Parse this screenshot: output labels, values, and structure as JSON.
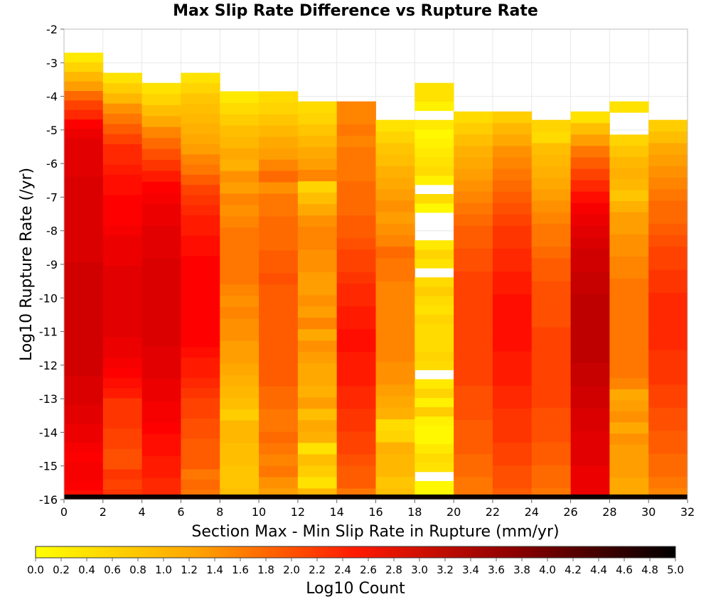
{
  "chart_data": {
    "type": "heatmap",
    "title": "Max Slip Rate Difference vs Rupture Rate",
    "xlabel": "Section Max - Min Slip Rate in Rupture (mm/yr)",
    "ylabel": "Log10 Rupture Rate (/yr)",
    "colorbar_label": "Log10 Count",
    "xlim": [
      0,
      32
    ],
    "ylim": [
      -16,
      -2
    ],
    "x_ticks": [
      "0",
      "2",
      "4",
      "6",
      "8",
      "10",
      "12",
      "14",
      "16",
      "18",
      "20",
      "22",
      "24",
      "26",
      "28",
      "30",
      "32"
    ],
    "y_ticks": [
      "-2",
      "-3",
      "-4",
      "-5",
      "-6",
      "-7",
      "-8",
      "-9",
      "-10",
      "-11",
      "-12",
      "-13",
      "-14",
      "-15",
      "-16"
    ],
    "colorbar_ticks": [
      "0.0",
      "0.2",
      "0.4",
      "0.6",
      "0.8",
      "1.0",
      "1.2",
      "1.4",
      "1.6",
      "1.8",
      "2.0",
      "2.2",
      "2.4",
      "2.6",
      "2.8",
      "3.0",
      "3.2",
      "3.4",
      "3.6",
      "3.8",
      "4.0",
      "4.2",
      "4.4",
      "4.6",
      "4.8",
      "5.0"
    ],
    "colorbar_range": [
      0,
      5
    ],
    "colormap": [
      "#ffff00",
      "#ffa500",
      "#ff0000",
      "#8b0000",
      "#000000"
    ],
    "grid": true,
    "y_bin_width": 0.285,
    "note_values": "log10 count per cell; columns are 2 mm/yr bins, bins listed from log10 rate -16 upward",
    "columns": [
      {
        "x_start": 0,
        "y_top": -2.7,
        "values": [
          2.4,
          2.5,
          2.6,
          2.6,
          2.5,
          2.6,
          2.7,
          2.7,
          2.8,
          2.8,
          2.9,
          2.9,
          2.9,
          3.0,
          3.0,
          3.0,
          3.0,
          3.0,
          3.0,
          3.0,
          3.0,
          3.0,
          3.0,
          3.0,
          3.0,
          2.9,
          2.9,
          2.9,
          2.9,
          2.9,
          2.9,
          2.9,
          2.9,
          2.9,
          2.8,
          2.8,
          2.8,
          2.8,
          2.7,
          2.5,
          2.2,
          2.0,
          1.7,
          1.3,
          1.0,
          0.6,
          0.3
        ]
      },
      {
        "x_start": 2,
        "y_top": -3.3,
        "values": [
          2.1,
          2.0,
          2.1,
          1.9,
          1.9,
          2.0,
          2.0,
          2.1,
          2.1,
          2.1,
          2.3,
          2.4,
          2.5,
          2.6,
          2.7,
          2.7,
          2.8,
          2.8,
          2.8,
          2.8,
          2.8,
          2.8,
          2.8,
          2.7,
          2.7,
          2.7,
          2.6,
          2.5,
          2.5,
          2.5,
          2.4,
          2.4,
          2.3,
          2.2,
          2.2,
          2.0,
          1.8,
          1.6,
          1.4,
          1.0,
          0.7,
          0.4
        ]
      },
      {
        "x_start": 4,
        "y_top": -3.6,
        "values": [
          2.2,
          2.2,
          2.3,
          2.3,
          2.4,
          2.4,
          2.5,
          2.6,
          2.6,
          2.7,
          2.7,
          2.8,
          2.8,
          2.8,
          2.9,
          2.9,
          2.9,
          2.9,
          2.9,
          2.9,
          2.9,
          2.9,
          2.8,
          2.8,
          2.8,
          2.7,
          2.7,
          2.6,
          2.5,
          2.3,
          2.1,
          1.9,
          1.7,
          1.5,
          1.2,
          0.9,
          0.6,
          0.4
        ]
      },
      {
        "x_start": 6,
        "y_top": -3.3,
        "values": [
          1.6,
          1.7,
          1.6,
          1.8,
          1.8,
          1.8,
          1.9,
          1.9,
          2.0,
          2.0,
          2.1,
          2.2,
          2.3,
          2.3,
          2.4,
          2.5,
          2.5,
          2.5,
          2.5,
          2.5,
          2.5,
          2.5,
          2.5,
          2.5,
          2.4,
          2.4,
          2.3,
          2.3,
          2.2,
          2.1,
          2.0,
          1.8,
          1.6,
          1.5,
          1.3,
          1.2,
          1.1,
          1.0,
          0.9,
          0.8,
          0.6,
          0.4
        ]
      },
      {
        "x_start": 8,
        "y_top": -3.85,
        "values": [
          0.9,
          0.8,
          0.8,
          0.9,
          0.9,
          1.0,
          1.0,
          0.7,
          0.9,
          1.0,
          1.1,
          1.2,
          1.3,
          1.3,
          1.4,
          1.4,
          1.5,
          1.4,
          1.5,
          1.6,
          1.6,
          1.6,
          1.6,
          1.6,
          1.5,
          1.4,
          1.5,
          1.3,
          1.4,
          1.1,
          1.2,
          1.0,
          0.9,
          0.7,
          0.5,
          0.3
        ]
      },
      {
        "x_start": 10,
        "y_top": -3.85,
        "values": [
          1.3,
          1.4,
          1.6,
          1.5,
          1.6,
          1.7,
          1.6,
          1.6,
          1.7,
          1.7,
          1.8,
          1.8,
          1.8,
          1.8,
          1.8,
          1.8,
          1.8,
          1.8,
          1.8,
          1.9,
          1.8,
          1.8,
          1.7,
          1.7,
          1.7,
          1.6,
          1.6,
          1.4,
          1.7,
          1.5,
          1.3,
          1.2,
          1.0,
          0.8,
          0.6,
          0.5
        ]
      },
      {
        "x_start": 12,
        "y_top": -4.15,
        "values": [
          1.0,
          0.4,
          0.7,
          0.9,
          0.4,
          1.1,
          1.2,
          0.9,
          1.3,
          1.1,
          1.2,
          1.2,
          1.3,
          1.4,
          1.2,
          1.5,
          1.3,
          1.4,
          1.3,
          1.3,
          1.4,
          1.4,
          1.5,
          1.5,
          1.4,
          1.2,
          0.9,
          0.6,
          1.5,
          1.3,
          1.2,
          1.0,
          0.8,
          0.6,
          0.5
        ]
      },
      {
        "x_start": 14,
        "y_top": -4.15,
        "values": [
          1.6,
          1.8,
          1.8,
          1.9,
          2.0,
          2.0,
          2.1,
          2.1,
          2.2,
          2.2,
          2.3,
          2.3,
          2.3,
          2.4,
          2.4,
          2.3,
          2.3,
          2.2,
          2.2,
          2.1,
          2.0,
          2.0,
          1.9,
          1.8,
          1.8,
          1.7,
          1.7,
          1.7,
          1.6,
          1.6,
          1.6,
          1.5,
          1.6,
          1.5,
          1.5
        ]
      },
      {
        "x_start": 16,
        "y_top": -4.7,
        "values": [
          0.9,
          0.8,
          1.0,
          1.0,
          1.1,
          0.6,
          0.5,
          1.1,
          1.2,
          1.3,
          1.4,
          1.4,
          1.5,
          1.5,
          1.5,
          1.5,
          1.5,
          1.5,
          1.5,
          1.6,
          1.6,
          1.7,
          1.5,
          1.4,
          1.3,
          1.4,
          1.3,
          1.2,
          1.1,
          0.9,
          0.8,
          0.6,
          0.4
        ]
      },
      {
        "x_start": 18,
        "y_top": -3.6,
        "values": [
          0.1,
          0.1,
          null,
          0.4,
          0.5,
          0.3,
          0.1,
          0.1,
          0.2,
          0.7,
          0.2,
          0.6,
          0.3,
          null,
          0.5,
          0.6,
          0.5,
          0.5,
          0.5,
          0.6,
          0.4,
          0.5,
          0.7,
          0.5,
          null,
          0.4,
          0.6,
          0.3,
          null,
          null,
          null,
          0.1,
          0.5,
          null,
          0.2,
          0.5,
          0.4,
          0.3,
          0.2,
          0.1,
          0.3,
          null,
          0.2,
          0.4,
          0.4
        ]
      },
      {
        "x_start": 20,
        "y_top": -4.45,
        "values": [
          1.6,
          1.6,
          1.7,
          1.7,
          1.8,
          1.8,
          1.8,
          1.9,
          1.9,
          1.9,
          2.0,
          2.0,
          2.0,
          2.0,
          2.0,
          2.0,
          2.0,
          2.0,
          2.0,
          2.0,
          1.9,
          1.9,
          1.8,
          1.8,
          1.7,
          1.6,
          1.5,
          1.4,
          1.3,
          1.2,
          1.1,
          0.9,
          0.7,
          0.5
        ]
      },
      {
        "x_start": 22,
        "y_top": -4.45,
        "values": [
          1.8,
          1.9,
          1.9,
          2.0,
          2.0,
          2.1,
          2.1,
          2.1,
          2.2,
          2.2,
          2.3,
          2.3,
          2.3,
          2.4,
          2.4,
          2.4,
          2.4,
          2.4,
          2.3,
          2.3,
          2.2,
          2.2,
          2.1,
          2.1,
          2.0,
          1.9,
          1.8,
          1.7,
          1.6,
          1.5,
          1.4,
          1.2,
          1.0,
          0.7
        ]
      },
      {
        "x_start": 24,
        "y_top": -4.7,
        "values": [
          1.6,
          1.7,
          1.7,
          1.8,
          1.8,
          1.9,
          1.9,
          1.9,
          2.0,
          2.0,
          2.0,
          2.0,
          2.0,
          2.0,
          2.0,
          1.9,
          1.9,
          1.9,
          1.9,
          1.8,
          1.8,
          1.7,
          1.6,
          1.6,
          1.5,
          1.4,
          1.3,
          1.2,
          1.1,
          1.0,
          0.9,
          0.5,
          0.6
        ]
      },
      {
        "x_start": 26,
        "y_top": -4.45,
        "values": [
          2.7,
          2.7,
          2.7,
          2.8,
          2.8,
          2.8,
          2.9,
          2.9,
          3.0,
          3.0,
          3.1,
          3.1,
          3.2,
          3.2,
          3.2,
          3.2,
          3.2,
          3.2,
          3.1,
          3.1,
          3.0,
          3.0,
          2.9,
          2.8,
          2.7,
          2.6,
          2.4,
          2.2,
          2.0,
          1.8,
          1.6,
          1.3,
          0.9,
          0.4
        ]
      },
      {
        "x_start": 28,
        "y_top": -4.15,
        "values": [
          1.2,
          1.2,
          1.3,
          1.3,
          1.3,
          1.4,
          1.2,
          1.4,
          1.3,
          1.2,
          1.5,
          1.6,
          1.6,
          1.6,
          1.6,
          1.6,
          1.6,
          1.6,
          1.6,
          1.6,
          1.5,
          1.5,
          1.4,
          1.4,
          1.3,
          1.3,
          1.1,
          0.8,
          1.0,
          1.1,
          1.0,
          0.8,
          0.6,
          null,
          null,
          0.4
        ]
      },
      {
        "x_start": 30,
        "y_top": -4.7,
        "values": [
          1.5,
          1.6,
          1.7,
          1.7,
          1.8,
          1.8,
          1.9,
          1.9,
          2.0,
          2.0,
          2.1,
          2.1,
          2.1,
          2.2,
          2.2,
          2.2,
          2.2,
          2.2,
          2.1,
          2.1,
          2.0,
          2.0,
          1.9,
          1.8,
          1.7,
          1.7,
          1.6,
          1.5,
          1.4,
          1.3,
          1.2,
          0.9,
          0.7
        ]
      }
    ],
    "bottom_row": {
      "y_start": -16,
      "y_end": -15.85,
      "value": 4.9
    }
  }
}
